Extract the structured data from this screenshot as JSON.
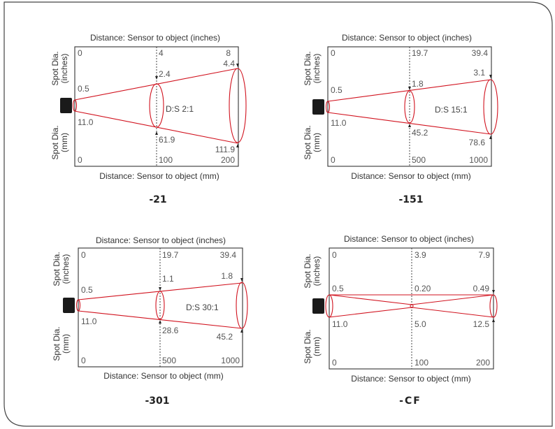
{
  "colors": {
    "beam": "#d1121e",
    "frame": "#333333",
    "text": "#444444",
    "sensor": "#1a1a1a"
  },
  "diagrams": [
    {
      "id": "21",
      "model": "-21",
      "ratio": "D:S 2:1",
      "top_label": "Distance: Sensor to object (inches)",
      "bottom_label": "Distance: Sensor to object (mm)",
      "side_top": [
        "Spot Dia.",
        "(inches)"
      ],
      "side_bottom": [
        "Spot Dia.",
        "(mm)"
      ],
      "top_ticks": [
        "0",
        "4",
        "8"
      ],
      "bottom_ticks": [
        "0",
        "100",
        "200"
      ],
      "inch_values": [
        "0.5",
        "2.4",
        "4.4"
      ],
      "mm_values": [
        "11.0",
        "61.9",
        "111.9"
      ]
    },
    {
      "id": "151",
      "model": "-151",
      "ratio": "D:S 15:1",
      "top_label": "Distance: Sensor to object (inches)",
      "bottom_label": "Distance: Sensor to object (mm)",
      "side_top": [
        "Spot Dia.",
        "(inches)"
      ],
      "side_bottom": [
        "Spot Dia.",
        "(mm)"
      ],
      "top_ticks": [
        "0",
        "19.7",
        "39.4"
      ],
      "bottom_ticks": [
        "0",
        "500",
        "1000"
      ],
      "inch_values": [
        "0.5",
        "1.8",
        "3.1"
      ],
      "mm_values": [
        "11.0",
        "45.2",
        "78.6"
      ]
    },
    {
      "id": "301",
      "model": "-301",
      "ratio": "D:S 30:1",
      "top_label": "Distance: Sensor to object (inches)",
      "bottom_label": "Distance: Sensor to object (mm)",
      "side_top": [
        "Spot Dia.",
        "(inches)"
      ],
      "side_bottom": [
        "Spot Dia.",
        "(mm)"
      ],
      "top_ticks": [
        "0",
        "19.7",
        "39.4"
      ],
      "bottom_ticks": [
        "0",
        "500",
        "1000"
      ],
      "inch_values": [
        "0.5",
        "1.1",
        "1.8"
      ],
      "mm_values": [
        "11.0",
        "28.6",
        "45.2"
      ]
    },
    {
      "id": "cf",
      "model": "-CF",
      "ratio": "",
      "top_label": "Distance: Sensor to object (inches)",
      "bottom_label": "Distance: Sensor to object (mm)",
      "side_top": [
        "Spot Dia.",
        "(inches)"
      ],
      "side_bottom": [
        "Spot Dia.",
        "(mm)"
      ],
      "top_ticks": [
        "0",
        "3.9",
        "7.9"
      ],
      "bottom_ticks": [
        "0",
        "100",
        "200"
      ],
      "inch_values": [
        "0.5",
        "0.20",
        "0.49"
      ],
      "mm_values": [
        "11.0",
        "5.0",
        "12.5"
      ]
    }
  ]
}
